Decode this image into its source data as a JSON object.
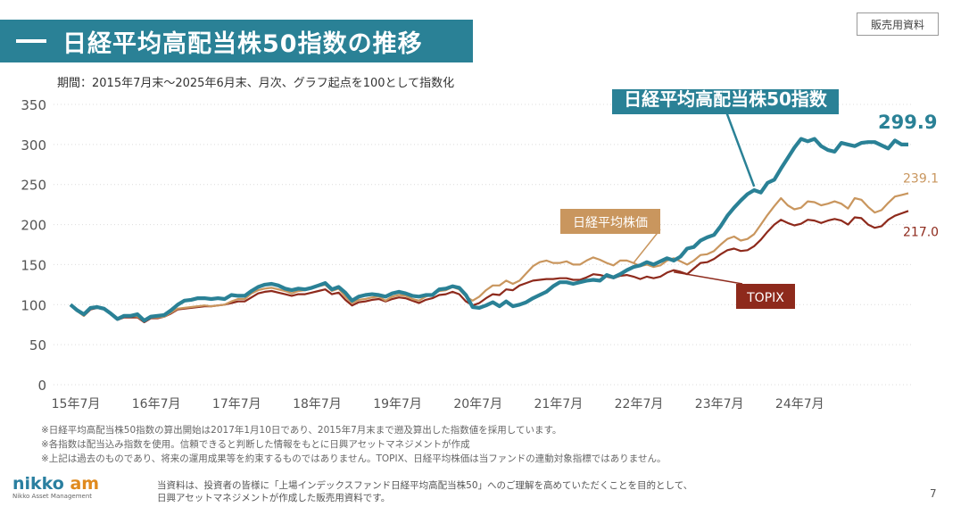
{
  "header": {
    "title": "日経平均高配当株50指数の推移",
    "badge": "販売用資料",
    "period": "期間：2015年7月末～2025年6月末、月次、グラフ起点を100として指数化"
  },
  "colors": {
    "accent": "#2a8196",
    "nikkei": "#c9965e",
    "topix": "#8e2a1c"
  },
  "chart_data": {
    "type": "line",
    "ylim": [
      0,
      350
    ],
    "yticks": [
      0,
      50,
      100,
      150,
      200,
      250,
      300,
      350
    ],
    "xticks": [
      "15年7月",
      "16年7月",
      "17年7月",
      "18年7月",
      "19年7月",
      "20年7月",
      "21年7月",
      "22年7月",
      "23年7月",
      "24年7月"
    ],
    "x_start": "2015-07",
    "x_end": "2025-06",
    "series": [
      {
        "name": "日経平均高配当株50指数",
        "color": "#2a8196",
        "end_label": "299.9",
        "values": [
          100,
          93,
          88,
          96,
          97,
          95,
          89,
          82,
          86,
          86,
          88,
          80,
          85,
          86,
          87,
          93,
          100,
          105,
          106,
          108,
          108,
          107,
          108,
          107,
          112,
          111,
          111,
          117,
          122,
          125,
          126,
          124,
          120,
          118,
          120,
          119,
          121,
          124,
          127,
          119,
          122,
          115,
          105,
          110,
          112,
          113,
          112,
          110,
          114,
          116,
          114,
          111,
          110,
          112,
          112,
          119,
          120,
          123,
          121,
          112,
          97,
          96,
          99,
          103,
          98,
          104,
          98,
          100,
          103,
          108,
          112,
          116,
          123,
          128,
          128,
          126,
          128,
          130,
          131,
          130,
          137,
          134,
          138,
          143,
          147,
          149,
          153,
          150,
          154,
          158,
          155,
          160,
          170,
          172,
          180,
          184,
          187,
          198,
          211,
          221,
          230,
          238,
          243,
          240,
          252,
          256,
          270,
          283,
          296,
          307,
          304,
          307,
          298,
          293,
          291,
          302,
          300,
          298,
          302,
          303,
          303,
          299,
          295,
          305,
          300,
          299.9
        ]
      },
      {
        "name": "日経平均株価",
        "color": "#c9965e",
        "end_label": "239.1",
        "values": [
          100,
          92,
          86,
          95,
          97,
          95,
          90,
          82,
          85,
          86,
          85,
          79,
          84,
          84,
          85,
          90,
          95,
          96,
          97,
          98,
          99,
          98,
          99,
          100,
          104,
          107,
          107,
          114,
          118,
          120,
          121,
          119,
          117,
          114,
          117,
          118,
          121,
          123,
          125,
          117,
          120,
          110,
          102,
          106,
          107,
          109,
          110,
          105,
          110,
          112,
          111,
          107,
          105,
          110,
          113,
          117,
          118,
          122,
          119,
          110,
          105,
          110,
          118,
          124,
          124,
          130,
          126,
          130,
          139,
          148,
          153,
          155,
          152,
          152,
          154,
          150,
          150,
          155,
          159,
          156,
          152,
          149,
          155,
          155,
          152,
          148,
          150,
          147,
          149,
          155,
          158,
          154,
          150,
          155,
          162,
          163,
          167,
          175,
          182,
          185,
          180,
          182,
          188,
          200,
          212,
          223,
          233,
          224,
          219,
          221,
          229,
          228,
          224,
          226,
          229,
          226,
          220,
          233,
          231,
          222,
          215,
          218,
          227,
          235,
          237,
          239.1
        ]
      },
      {
        "name": "TOPIX",
        "color": "#8e2a1c",
        "end_label": "217.0",
        "values": [
          100,
          92,
          86,
          94,
          96,
          94,
          89,
          81,
          84,
          84,
          84,
          78,
          83,
          83,
          85,
          89,
          94,
          95,
          96,
          97,
          98,
          98,
          99,
          100,
          102,
          104,
          104,
          109,
          114,
          116,
          117,
          115,
          113,
          111,
          113,
          113,
          115,
          117,
          119,
          113,
          115,
          106,
          99,
          103,
          104,
          106,
          107,
          104,
          107,
          109,
          108,
          105,
          102,
          106,
          108,
          112,
          113,
          116,
          113,
          104,
          99,
          102,
          108,
          113,
          112,
          119,
          118,
          124,
          127,
          130,
          131,
          132,
          132,
          133,
          133,
          131,
          131,
          134,
          138,
          137,
          135,
          133,
          136,
          137,
          135,
          132,
          135,
          133,
          135,
          140,
          143,
          141,
          138,
          145,
          152,
          153,
          157,
          163,
          168,
          170,
          167,
          168,
          173,
          181,
          191,
          200,
          206,
          202,
          199,
          201,
          206,
          205,
          202,
          205,
          207,
          205,
          200,
          209,
          208,
          200,
          196,
          198,
          206,
          211,
          214,
          217.0
        ]
      }
    ]
  },
  "callouts": {
    "main": "日経平均高配当株50指数",
    "nikkei": "日経平均株価",
    "topix": "TOPIX"
  },
  "footnotes": [
    "※日経平均高配当株50指数の算出開始は2017年1月10日であり、2015年7月末まで遡及算出した指数値を採用しています。",
    "※各指数は配当込み指数を使用。信頼できると判断した情報をもとに日興アセットマネジメントが作成",
    "※上記は過去のものであり、将来の運用成果等を約束するものではありません。TOPIX、日経平均株価は当ファンドの連動対象指標ではありません。"
  ],
  "footer": {
    "logo_main": "nikko",
    "logo_am": "am",
    "logo_sub": "Nikko Asset Management",
    "disclaimer_line1": "当資料は、投資者の皆様に「上場インデックスファンド日経平均高配当株50」へのご理解を高めていただくことを目的として、",
    "disclaimer_line2": "日興アセットマネジメントが作成した販売用資料です。",
    "page": "7"
  }
}
